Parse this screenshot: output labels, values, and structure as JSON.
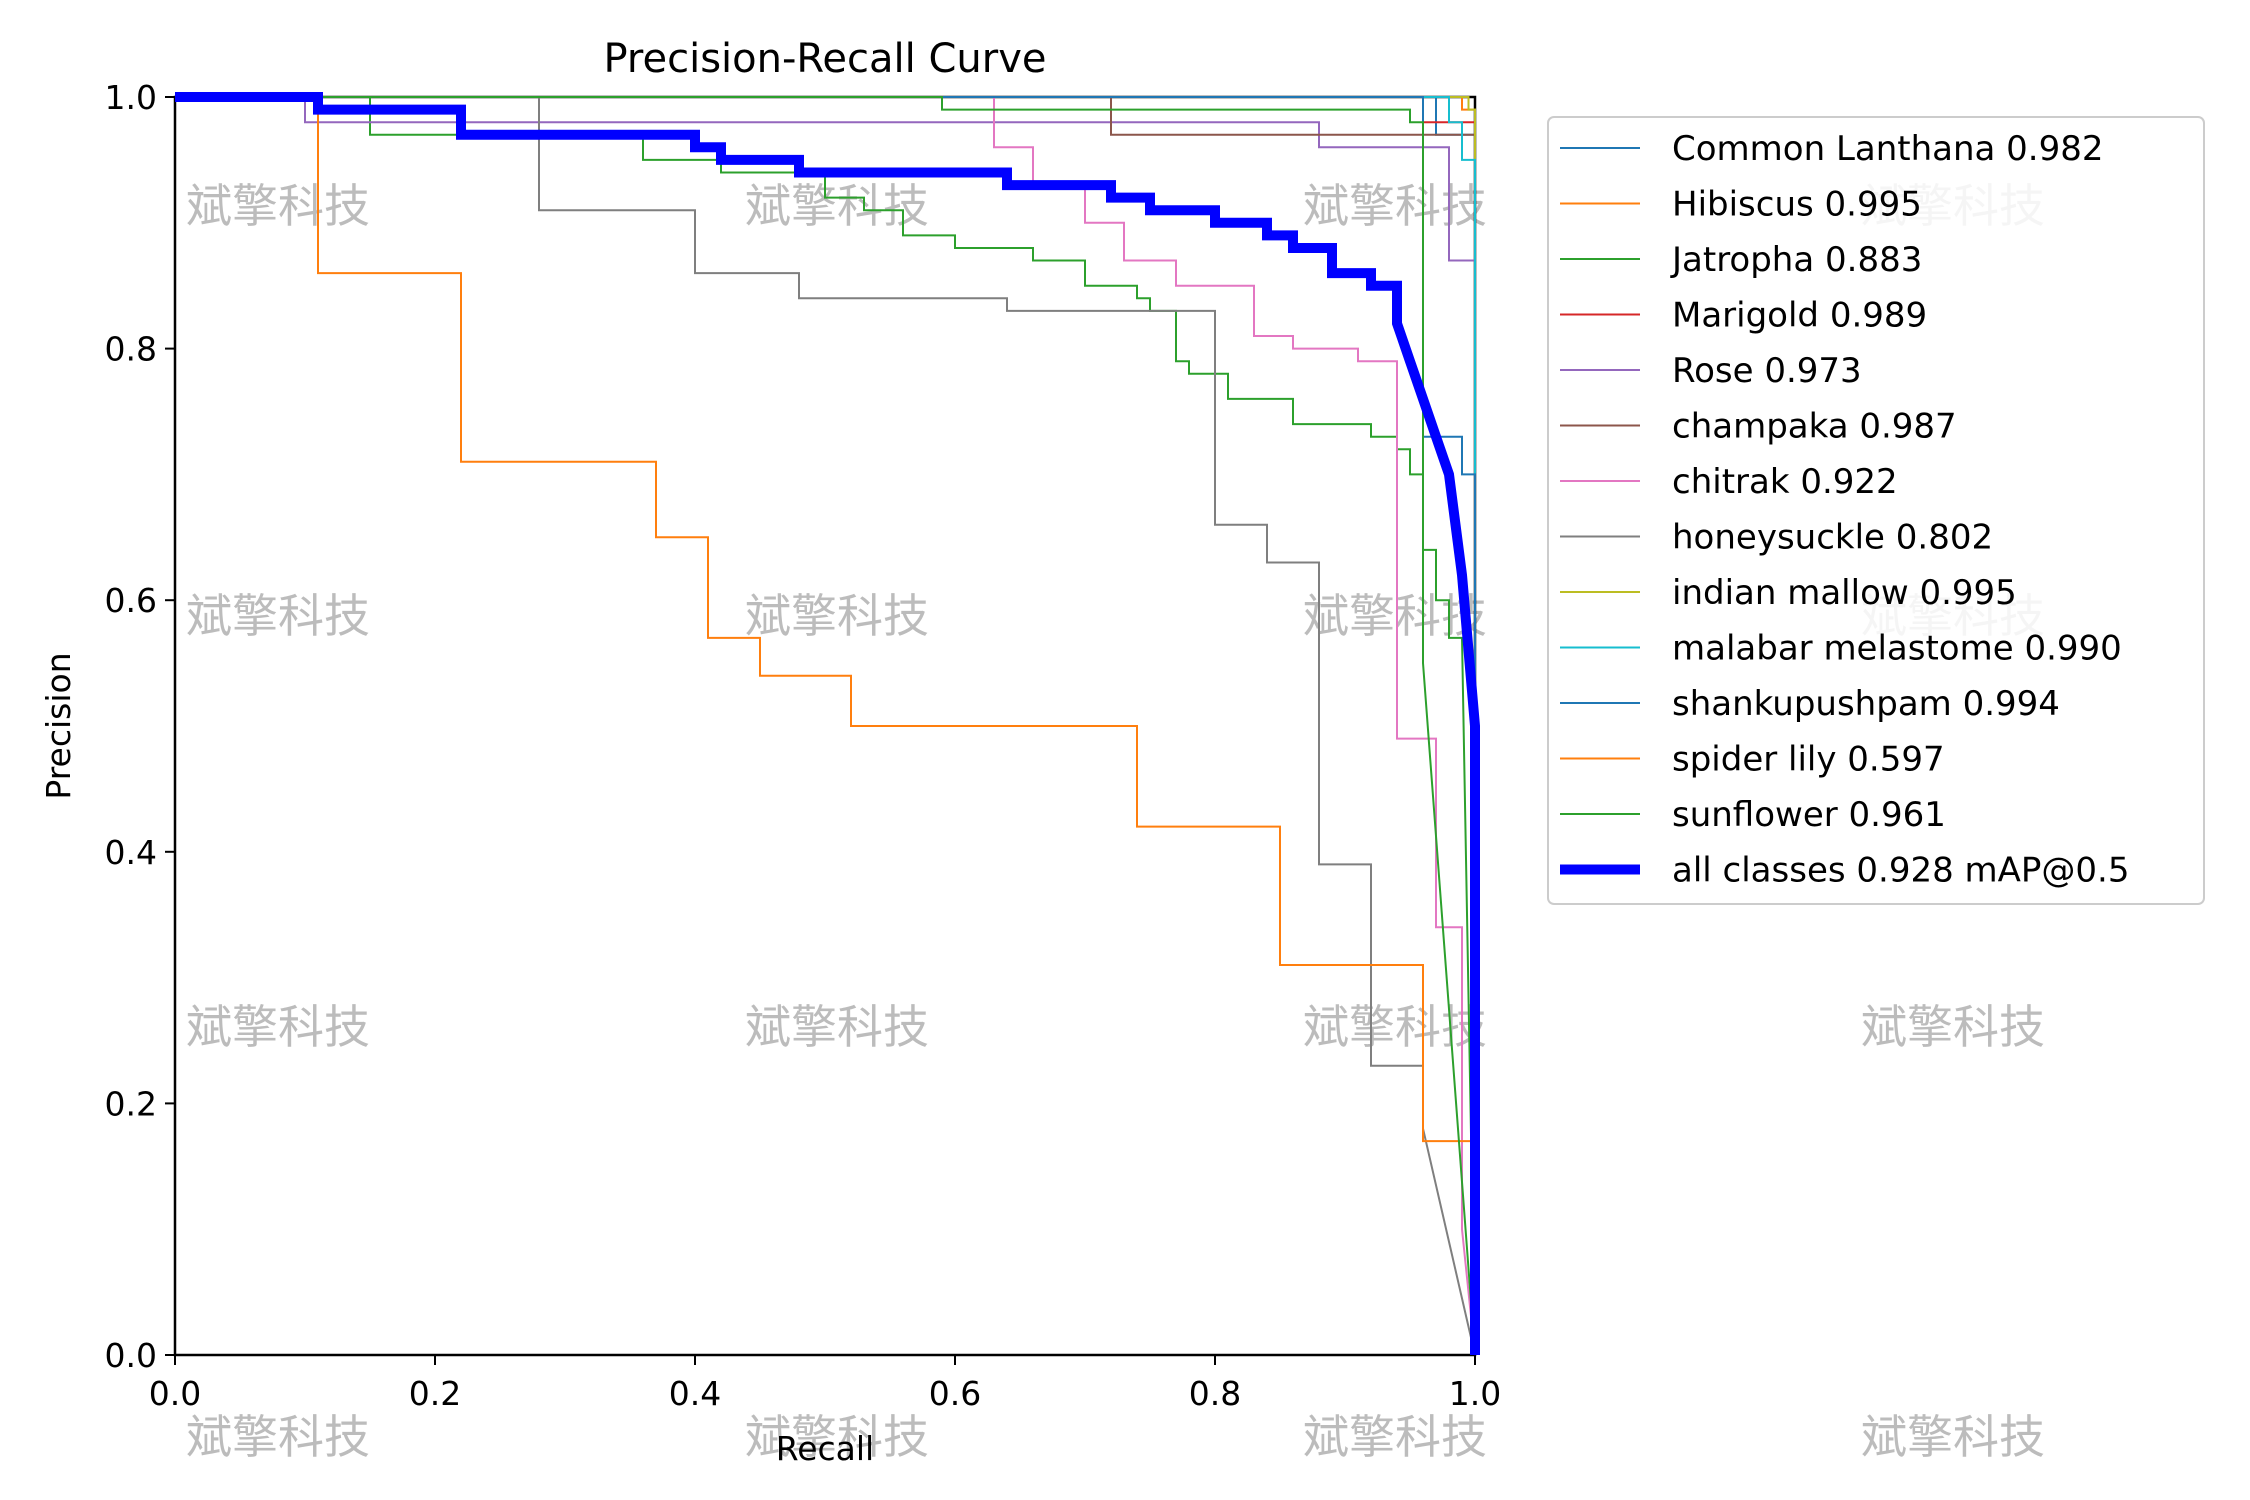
{
  "chart_data": {
    "type": "line",
    "title": "Precision-Recall Curve",
    "xlabel": "Recall",
    "ylabel": "Precision",
    "xlim": [
      0,
      1
    ],
    "ylim": [
      0,
      1
    ],
    "xticks": [
      "0.0",
      "0.2",
      "0.4",
      "0.6",
      "0.8",
      "1.0"
    ],
    "yticks": [
      "0.0",
      "0.2",
      "0.4",
      "0.6",
      "0.8",
      "1.0"
    ],
    "grid": false,
    "legend_position": "outside-right",
    "watermark": "斌擎科技",
    "series": [
      {
        "name": "Common Lanthana 0.982",
        "color": "#1f77b4",
        "width": 1,
        "points": [
          [
            0,
            1
          ],
          [
            0.95,
            1
          ],
          [
            0.95,
            1
          ],
          [
            0.97,
            1
          ],
          [
            0.97,
            0.97
          ],
          [
            1,
            0.97
          ],
          [
            1,
            0
          ]
        ]
      },
      {
        "name": "Hibiscus 0.995",
        "color": "#ff7f0e",
        "width": 1,
        "points": [
          [
            0,
            1
          ],
          [
            0.99,
            1
          ],
          [
            0.99,
            0.99
          ],
          [
            1,
            0.99
          ],
          [
            1,
            0
          ]
        ]
      },
      {
        "name": "Jatropha 0.883",
        "color": "#2ca02c",
        "width": 1,
        "points": [
          [
            0,
            1
          ],
          [
            0.15,
            1
          ],
          [
            0.15,
            0.97
          ],
          [
            0.22,
            0.97
          ],
          [
            0.22,
            0.97
          ],
          [
            0.36,
            0.97
          ],
          [
            0.36,
            0.95
          ],
          [
            0.42,
            0.95
          ],
          [
            0.42,
            0.94
          ],
          [
            0.5,
            0.94
          ],
          [
            0.5,
            0.92
          ],
          [
            0.53,
            0.92
          ],
          [
            0.53,
            0.91
          ],
          [
            0.56,
            0.91
          ],
          [
            0.56,
            0.89
          ],
          [
            0.6,
            0.89
          ],
          [
            0.6,
            0.88
          ],
          [
            0.66,
            0.88
          ],
          [
            0.66,
            0.87
          ],
          [
            0.7,
            0.87
          ],
          [
            0.7,
            0.85
          ],
          [
            0.74,
            0.85
          ],
          [
            0.74,
            0.84
          ],
          [
            0.75,
            0.84
          ],
          [
            0.75,
            0.83
          ],
          [
            0.77,
            0.83
          ],
          [
            0.77,
            0.79
          ],
          [
            0.78,
            0.79
          ],
          [
            0.78,
            0.78
          ],
          [
            0.81,
            0.78
          ],
          [
            0.81,
            0.76
          ],
          [
            0.86,
            0.76
          ],
          [
            0.86,
            0.74
          ],
          [
            0.92,
            0.74
          ],
          [
            0.92,
            0.73
          ],
          [
            0.94,
            0.73
          ],
          [
            0.94,
            0.72
          ],
          [
            0.95,
            0.72
          ],
          [
            0.95,
            0.7
          ],
          [
            0.96,
            0.7
          ],
          [
            0.96,
            0.64
          ],
          [
            0.97,
            0.64
          ],
          [
            0.97,
            0.6
          ],
          [
            0.98,
            0.6
          ],
          [
            0.98,
            0.57
          ],
          [
            0.99,
            0.57
          ],
          [
            1,
            0
          ]
        ]
      },
      {
        "name": "Marigold 0.989",
        "color": "#d62728",
        "width": 1,
        "points": [
          [
            0,
            1
          ],
          [
            0.96,
            1
          ],
          [
            0.96,
            0.98
          ],
          [
            1,
            0.98
          ],
          [
            1,
            0
          ]
        ]
      },
      {
        "name": "Rose 0.973",
        "color": "#9467bd",
        "width": 1,
        "points": [
          [
            0,
            1
          ],
          [
            0.1,
            1
          ],
          [
            0.1,
            0.98
          ],
          [
            0.88,
            0.98
          ],
          [
            0.88,
            0.96
          ],
          [
            0.98,
            0.96
          ],
          [
            0.98,
            0.87
          ],
          [
            1,
            0.87
          ],
          [
            1,
            0
          ]
        ]
      },
      {
        "name": "champaka 0.987",
        "color": "#8c564b",
        "width": 1,
        "points": [
          [
            0,
            1
          ],
          [
            0.72,
            1
          ],
          [
            0.72,
            0.97
          ],
          [
            1,
            0.97
          ],
          [
            1,
            0
          ]
        ]
      },
      {
        "name": "chitrak 0.922",
        "color": "#e377c2",
        "width": 1,
        "points": [
          [
            0,
            1
          ],
          [
            0.63,
            1
          ],
          [
            0.63,
            0.96
          ],
          [
            0.66,
            0.96
          ],
          [
            0.66,
            0.93
          ],
          [
            0.7,
            0.93
          ],
          [
            0.7,
            0.9
          ],
          [
            0.73,
            0.9
          ],
          [
            0.73,
            0.87
          ],
          [
            0.77,
            0.87
          ],
          [
            0.77,
            0.85
          ],
          [
            0.83,
            0.85
          ],
          [
            0.83,
            0.81
          ],
          [
            0.86,
            0.81
          ],
          [
            0.86,
            0.8
          ],
          [
            0.91,
            0.8
          ],
          [
            0.91,
            0.79
          ],
          [
            0.94,
            0.79
          ],
          [
            0.94,
            0.49
          ],
          [
            0.97,
            0.49
          ],
          [
            0.97,
            0.34
          ],
          [
            0.99,
            0.34
          ],
          [
            0.99,
            0.1
          ],
          [
            1,
            0
          ]
        ]
      },
      {
        "name": "honeysuckle 0.802",
        "color": "#7f7f7f",
        "width": 1,
        "points": [
          [
            0,
            1
          ],
          [
            0.28,
            1
          ],
          [
            0.28,
            0.91
          ],
          [
            0.4,
            0.91
          ],
          [
            0.4,
            0.86
          ],
          [
            0.48,
            0.86
          ],
          [
            0.48,
            0.84
          ],
          [
            0.64,
            0.84
          ],
          [
            0.64,
            0.83
          ],
          [
            0.8,
            0.83
          ],
          [
            0.8,
            0.66
          ],
          [
            0.84,
            0.66
          ],
          [
            0.84,
            0.63
          ],
          [
            0.88,
            0.63
          ],
          [
            0.88,
            0.39
          ],
          [
            0.92,
            0.39
          ],
          [
            0.92,
            0.23
          ],
          [
            0.96,
            0.23
          ],
          [
            0.96,
            0.18
          ],
          [
            1,
            0
          ]
        ]
      },
      {
        "name": "indian mallow 0.995",
        "color": "#bcbd22",
        "width": 1,
        "points": [
          [
            0,
            1
          ],
          [
            0.995,
            1
          ],
          [
            0.995,
            0.99
          ],
          [
            1,
            0.99
          ],
          [
            1,
            0
          ]
        ]
      },
      {
        "name": "malabar melastome 0.990",
        "color": "#17becf",
        "width": 1,
        "points": [
          [
            0,
            1
          ],
          [
            0.98,
            1
          ],
          [
            0.98,
            0.98
          ],
          [
            0.99,
            0.98
          ],
          [
            0.99,
            0.95
          ],
          [
            1,
            0.95
          ],
          [
            1,
            0
          ]
        ]
      },
      {
        "name": "shankupushpam 0.994",
        "color": "#1f77b4",
        "width": 1,
        "points": [
          [
            0,
            1
          ],
          [
            0.96,
            1
          ],
          [
            0.96,
            0.73
          ],
          [
            0.99,
            0.73
          ],
          [
            0.99,
            0.7
          ],
          [
            1,
            0.7
          ],
          [
            1,
            0
          ]
        ]
      },
      {
        "name": "spider lily 0.597",
        "color": "#ff7f0e",
        "width": 1,
        "points": [
          [
            0,
            1
          ],
          [
            0.11,
            1
          ],
          [
            0.11,
            0.86
          ],
          [
            0.22,
            0.86
          ],
          [
            0.22,
            0.71
          ],
          [
            0.37,
            0.71
          ],
          [
            0.37,
            0.65
          ],
          [
            0.41,
            0.65
          ],
          [
            0.41,
            0.57
          ],
          [
            0.45,
            0.57
          ],
          [
            0.45,
            0.54
          ],
          [
            0.49,
            0.54
          ],
          [
            0.49,
            0.54
          ],
          [
            0.52,
            0.54
          ],
          [
            0.52,
            0.5
          ],
          [
            0.74,
            0.5
          ],
          [
            0.74,
            0.42
          ],
          [
            0.78,
            0.42
          ],
          [
            0.78,
            0.42
          ],
          [
            0.85,
            0.42
          ],
          [
            0.85,
            0.31
          ],
          [
            0.96,
            0.31
          ],
          [
            0.96,
            0.17
          ],
          [
            1,
            0.17
          ],
          [
            1,
            0
          ]
        ]
      },
      {
        "name": "sunflower 0.961",
        "color": "#2ca02c",
        "width": 1,
        "points": [
          [
            0,
            1
          ],
          [
            0.59,
            1
          ],
          [
            0.59,
            0.99
          ],
          [
            0.95,
            0.99
          ],
          [
            0.95,
            0.98
          ],
          [
            0.96,
            0.98
          ],
          [
            0.96,
            0.55
          ],
          [
            1,
            0
          ]
        ]
      },
      {
        "name": "all classes 0.928 mAP@0.5",
        "color": "#0000ff",
        "width": 5,
        "points": [
          [
            0,
            1
          ],
          [
            0.11,
            1
          ],
          [
            0.11,
            0.99
          ],
          [
            0.15,
            0.99
          ],
          [
            0.15,
            0.99
          ],
          [
            0.22,
            0.99
          ],
          [
            0.22,
            0.97
          ],
          [
            0.28,
            0.97
          ],
          [
            0.28,
            0.97
          ],
          [
            0.36,
            0.97
          ],
          [
            0.36,
            0.97
          ],
          [
            0.4,
            0.97
          ],
          [
            0.4,
            0.96
          ],
          [
            0.42,
            0.96
          ],
          [
            0.42,
            0.95
          ],
          [
            0.45,
            0.95
          ],
          [
            0.45,
            0.95
          ],
          [
            0.48,
            0.95
          ],
          [
            0.48,
            0.94
          ],
          [
            0.52,
            0.94
          ],
          [
            0.52,
            0.94
          ],
          [
            0.56,
            0.94
          ],
          [
            0.56,
            0.94
          ],
          [
            0.6,
            0.94
          ],
          [
            0.6,
            0.94
          ],
          [
            0.64,
            0.94
          ],
          [
            0.64,
            0.93
          ],
          [
            0.68,
            0.93
          ],
          [
            0.68,
            0.93
          ],
          [
            0.72,
            0.93
          ],
          [
            0.72,
            0.92
          ],
          [
            0.75,
            0.92
          ],
          [
            0.75,
            0.91
          ],
          [
            0.8,
            0.91
          ],
          [
            0.8,
            0.9
          ],
          [
            0.84,
            0.9
          ],
          [
            0.84,
            0.89
          ],
          [
            0.86,
            0.89
          ],
          [
            0.86,
            0.88
          ],
          [
            0.89,
            0.88
          ],
          [
            0.89,
            0.86
          ],
          [
            0.92,
            0.86
          ],
          [
            0.92,
            0.85
          ],
          [
            0.94,
            0.85
          ],
          [
            0.94,
            0.82
          ],
          [
            0.95,
            0.79
          ],
          [
            0.96,
            0.76
          ],
          [
            0.97,
            0.73
          ],
          [
            0.98,
            0.7
          ],
          [
            0.985,
            0.66
          ],
          [
            0.99,
            0.62
          ],
          [
            0.995,
            0.56
          ],
          [
            1,
            0.5
          ],
          [
            1,
            0
          ]
        ]
      }
    ]
  }
}
